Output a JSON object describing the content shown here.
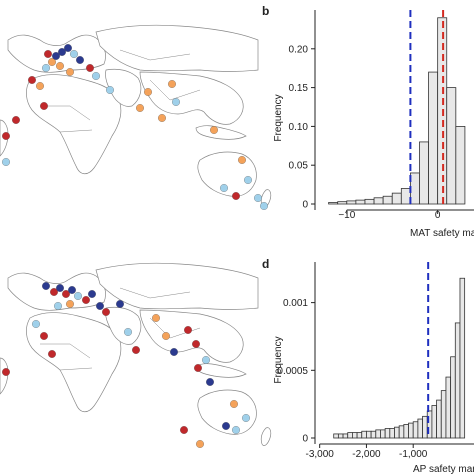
{
  "colors": {
    "bar_fill": "#e8e8e8",
    "bar_stroke": "#333333",
    "blue_dash": "#1f2fbf",
    "red_dash": "#d42a20",
    "land_stroke": "#888888",
    "dot_red": "#c0282b",
    "dot_orange": "#f4a25a",
    "dot_lightblue": "#9fd0ea",
    "dot_navy": "#2b3a8f"
  },
  "chart_data": [
    {
      "panel": "b",
      "type": "bar",
      "xlabel": "MAT safety mar",
      "ylabel": "Frequency",
      "xlim": [
        -13.5,
        4.0
      ],
      "ylim": [
        0,
        0.25
      ],
      "xticks": [
        -10,
        0
      ],
      "yticks": [
        0,
        0.05,
        0.1,
        0.15,
        0.2
      ],
      "ytick_labels": [
        "0",
        "0.05",
        "0.10",
        "0.15",
        "0.20"
      ],
      "bin_width": 1,
      "bin_left_edges": [
        -12,
        -11,
        -10,
        -9,
        -8,
        -7,
        -6,
        -5,
        -4,
        -3,
        -2,
        -1,
        0,
        1,
        2
      ],
      "values": [
        0.002,
        0.003,
        0.004,
        0.005,
        0.006,
        0.008,
        0.01,
        0.014,
        0.02,
        0.04,
        0.08,
        0.17,
        0.24,
        0.15,
        0.1
      ],
      "vlines": [
        {
          "x": -3.0,
          "color": "blue"
        },
        {
          "x": 0.6,
          "color": "red"
        }
      ]
    },
    {
      "panel": "d",
      "type": "bar",
      "xlabel": "AP safety marg",
      "ylabel": "Frequency",
      "xlim": [
        -3100,
        300
      ],
      "ylim": [
        0,
        0.0013
      ],
      "xticks": [
        -3000,
        -2000,
        -1000
      ],
      "xtick_labels": [
        "-3,000",
        "-2,000",
        "-1,000"
      ],
      "yticks": [
        0,
        0.0005,
        0.001
      ],
      "ytick_labels": [
        "0",
        "0.0005",
        "0.001"
      ],
      "bin_width": 100,
      "bin_left_edges": [
        -2700,
        -2600,
        -2500,
        -2400,
        -2300,
        -2200,
        -2100,
        -2000,
        -1900,
        -1800,
        -1700,
        -1600,
        -1500,
        -1400,
        -1300,
        -1200,
        -1100,
        -1000,
        -900,
        -800,
        -700,
        -600,
        -500,
        -400,
        -300,
        -200,
        -100,
        0
      ],
      "values": [
        3e-05,
        3e-05,
        3e-05,
        4e-05,
        4e-05,
        4e-05,
        5e-05,
        5e-05,
        5e-05,
        6e-05,
        6e-05,
        7e-05,
        7e-05,
        8e-05,
        9e-05,
        0.0001,
        0.00011,
        0.00012,
        0.00014,
        0.00016,
        0.0002,
        0.00024,
        0.00028,
        0.00035,
        0.00045,
        0.0006,
        0.00085,
        0.00118
      ],
      "vlines": [
        {
          "x": -680,
          "color": "blue"
        }
      ]
    }
  ]
}
